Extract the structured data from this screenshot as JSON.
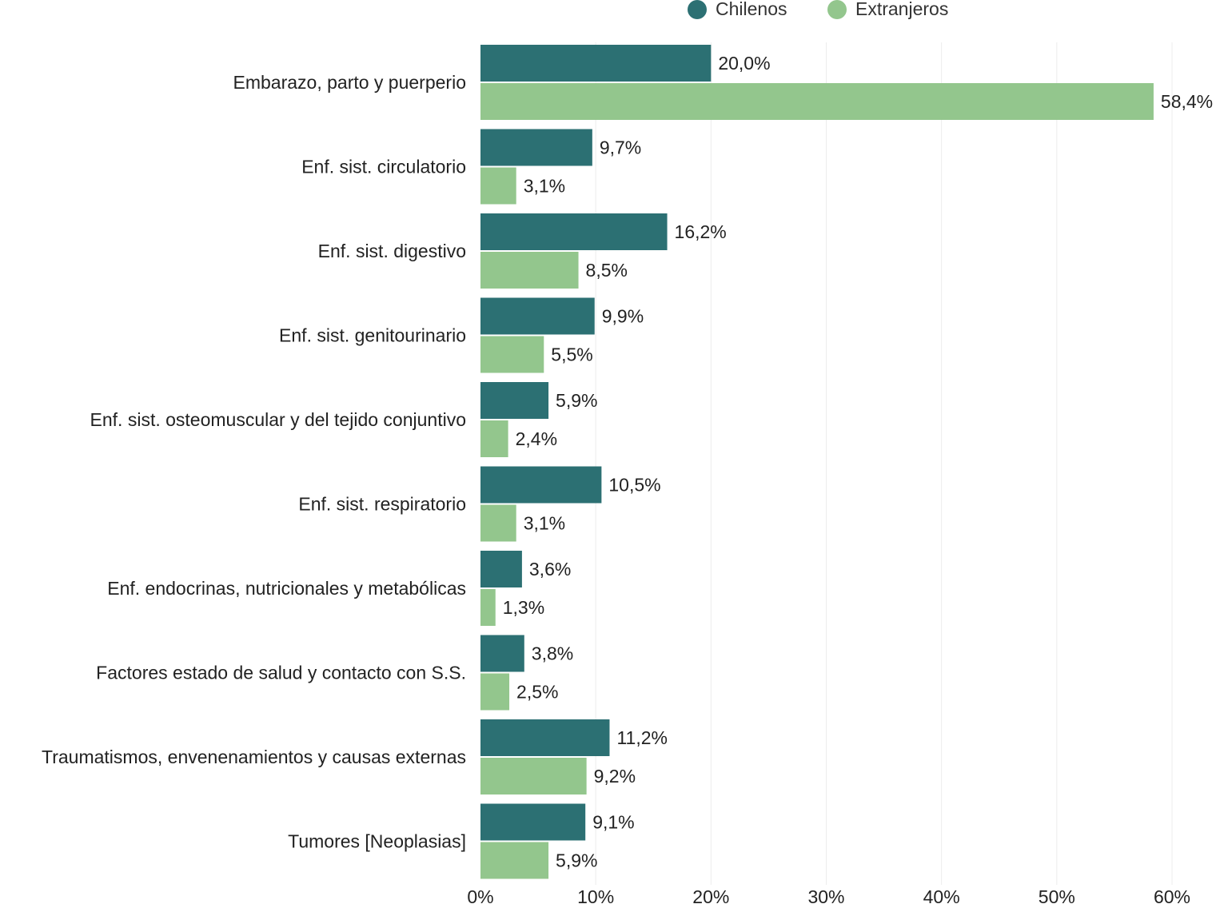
{
  "chart_data": {
    "type": "bar",
    "orientation": "horizontal",
    "categories": [
      "Embarazo, parto y puerperio",
      "Enf. sist. circulatorio",
      "Enf. sist. digestivo",
      "Enf. sist. genitourinario",
      "Enf. sist. osteomuscular y del tejido conjuntivo",
      "Enf. sist. respiratorio",
      "Enf. endocrinas, nutricionales y metabólicas",
      "Factores estado de salud y contacto con S.S.",
      "Traumatismos, envenenamientos y causas externas",
      "Tumores [Neoplasias]"
    ],
    "series": [
      {
        "name": "Chilenos",
        "color": "#2c7073",
        "values": [
          20.0,
          9.7,
          16.2,
          9.9,
          5.9,
          10.5,
          3.6,
          3.8,
          11.2,
          9.1
        ],
        "labels": [
          "20,0%",
          "9,7%",
          "16,2%",
          "9,9%",
          "5,9%",
          "10,5%",
          "3,6%",
          "3,8%",
          "11,2%",
          "9,1%"
        ]
      },
      {
        "name": "Extranjeros",
        "color": "#93c68d",
        "values": [
          58.4,
          3.1,
          8.5,
          5.5,
          2.4,
          3.1,
          1.3,
          2.5,
          9.2,
          5.9
        ],
        "labels": [
          "58,4%",
          "3,1%",
          "8,5%",
          "5,5%",
          "2,4%",
          "3,1%",
          "1,3%",
          "2,5%",
          "9,2%",
          "5,9%"
        ]
      }
    ],
    "xlim": [
      0,
      60
    ],
    "xticks": [
      0,
      10,
      20,
      30,
      40,
      50,
      60
    ],
    "xtick_labels": [
      "0%",
      "10%",
      "20%",
      "30%",
      "40%",
      "50%",
      "60%"
    ],
    "title": "",
    "xlabel": "",
    "ylabel": "",
    "grid": true,
    "legend_position": "top"
  }
}
